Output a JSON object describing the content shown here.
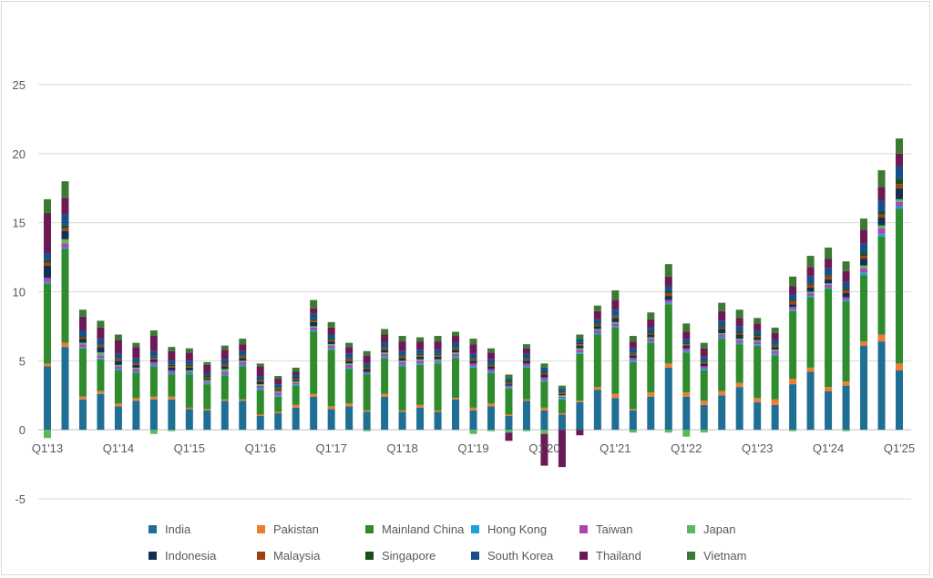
{
  "chart_data": {
    "type": "bar",
    "stacked": true,
    "title": "",
    "xlabel": "",
    "ylabel": "",
    "ylim": [
      -5,
      25
    ],
    "yticks": [
      -5,
      0,
      5,
      10,
      15,
      20,
      25
    ],
    "grid": true,
    "legend_position": "bottom",
    "x_tick_labels": [
      "Q1'13",
      "Q1'14",
      "Q1'15",
      "Q1'16",
      "Q1'17",
      "Q1'18",
      "Q1'19",
      "Q1'20",
      "Q1'21",
      "Q1'22",
      "Q1'23",
      "Q1'24",
      "Q1'25"
    ],
    "categories": [
      "Q1'13",
      "Q2'13",
      "Q3'13",
      "Q4'13",
      "Q1'14",
      "Q2'14",
      "Q3'14",
      "Q4'14",
      "Q1'15",
      "Q2'15",
      "Q3'15",
      "Q4'15",
      "Q1'16",
      "Q2'16",
      "Q3'16",
      "Q4'16",
      "Q1'17",
      "Q2'17",
      "Q3'17",
      "Q4'17",
      "Q1'18",
      "Q2'18",
      "Q3'18",
      "Q4'18",
      "Q1'19",
      "Q2'19",
      "Q3'19",
      "Q4'19",
      "Q1'20",
      "Q2'20",
      "Q3'20",
      "Q4'20",
      "Q1'21",
      "Q2'21",
      "Q3'21",
      "Q4'21",
      "Q1'22",
      "Q2'22",
      "Q3'22",
      "Q4'22",
      "Q1'23",
      "Q2'23",
      "Q3'23",
      "Q4'23",
      "Q1'24",
      "Q2'24",
      "Q3'24",
      "Q4'24",
      "Q1'25"
    ],
    "series": [
      {
        "name": "India",
        "color": "#1f6e94",
        "values": [
          4.6,
          6.0,
          2.2,
          2.6,
          1.7,
          2.1,
          2.2,
          2.2,
          1.5,
          1.4,
          2.1,
          2.1,
          1.0,
          1.2,
          1.6,
          2.4,
          1.5,
          1.7,
          1.3,
          2.4,
          1.3,
          1.6,
          1.3,
          2.2,
          1.4,
          1.7,
          1.0,
          2.1,
          1.4,
          1.1,
          2.0,
          2.9,
          2.3,
          1.4,
          2.4,
          4.5,
          2.4,
          1.8,
          2.5,
          3.1,
          2.0,
          1.8,
          3.3,
          4.2,
          2.8,
          3.2,
          6.1,
          6.4,
          4.3
        ]
      },
      {
        "name": "Pakistan",
        "color": "#ed7d31",
        "values": [
          0.2,
          0.3,
          0.2,
          0.2,
          0.2,
          0.2,
          0.2,
          0.2,
          0.1,
          0.1,
          0.1,
          0.1,
          0.1,
          0.1,
          0.2,
          0.2,
          0.2,
          0.2,
          0.1,
          0.2,
          0.1,
          0.2,
          0.1,
          0.1,
          0.2,
          0.2,
          0.1,
          0.1,
          0.2,
          0.1,
          0.1,
          0.2,
          0.3,
          0.1,
          0.3,
          0.3,
          0.3,
          0.3,
          0.3,
          0.3,
          0.3,
          0.4,
          0.4,
          0.3,
          0.3,
          0.3,
          0.3,
          0.5,
          0.5
        ]
      },
      {
        "name": "Mainland China",
        "color": "#2e8b2e",
        "values": [
          5.8,
          6.8,
          3.5,
          2.3,
          2.4,
          1.8,
          2.2,
          1.6,
          2.4,
          1.8,
          1.7,
          2.4,
          1.8,
          1.1,
          1.4,
          4.5,
          4.1,
          2.5,
          2.6,
          2.6,
          3.2,
          2.9,
          3.4,
          2.9,
          2.9,
          2.2,
          1.9,
          2.3,
          1.9,
          1.0,
          3.4,
          3.8,
          4.8,
          3.4,
          3.6,
          4.3,
          2.9,
          2.2,
          3.8,
          2.8,
          3.8,
          3.2,
          4.9,
          5.1,
          7.1,
          5.8,
          4.8,
          7.1,
          11.2
        ]
      },
      {
        "name": "Hong Kong",
        "color": "#1aa3d4",
        "values": [
          0.1,
          0.1,
          0.1,
          0.1,
          0.1,
          0.1,
          0.1,
          0.1,
          0.1,
          0.1,
          0.1,
          0.1,
          0.1,
          0.1,
          0.1,
          0.1,
          0.1,
          0.1,
          0.1,
          0.1,
          0.1,
          0.1,
          0.1,
          0.1,
          0.1,
          0.1,
          0.1,
          0.1,
          0.1,
          0.1,
          0.1,
          0.1,
          0.1,
          0.1,
          0.1,
          0.1,
          0.1,
          0.1,
          0.1,
          0.1,
          0.1,
          0.1,
          0.1,
          0.1,
          0.1,
          0.1,
          0.2,
          0.2,
          0.2
        ]
      },
      {
        "name": "Taiwan",
        "color": "#b044b5",
        "values": [
          0.3,
          0.3,
          0.2,
          0.2,
          0.2,
          0.2,
          0.2,
          0.2,
          0.1,
          0.1,
          0.2,
          0.2,
          0.2,
          0.2,
          0.1,
          0.2,
          0.2,
          0.2,
          0.1,
          0.2,
          0.2,
          0.2,
          0.1,
          0.2,
          0.2,
          0.2,
          0.1,
          0.2,
          0.2,
          0.1,
          0.2,
          0.2,
          0.2,
          0.2,
          0.2,
          0.2,
          0.2,
          0.2,
          0.2,
          0.2,
          0.2,
          0.2,
          0.2,
          0.2,
          0.2,
          0.2,
          0.3,
          0.4,
          0.3
        ]
      },
      {
        "name": "Japan",
        "color": "#5bb85b",
        "values": [
          -0.6,
          0.3,
          0.1,
          0.2,
          0.1,
          0.1,
          -0.3,
          -0.1,
          0.1,
          0.1,
          0.2,
          0.1,
          0.1,
          0.1,
          0.1,
          0.1,
          0.1,
          0.1,
          -0.1,
          0.1,
          0.1,
          0.1,
          0.1,
          0.1,
          -0.3,
          -0.1,
          -0.2,
          -0.1,
          -0.3,
          0.1,
          0.1,
          0.1,
          0.1,
          -0.2,
          0.1,
          -0.2,
          -0.5,
          -0.2,
          0.1,
          0.1,
          0.1,
          0.1,
          -0.1,
          0.1,
          0.1,
          -0.1,
          0.2,
          0.2,
          0.2
        ]
      },
      {
        "name": "Indonesia",
        "color": "#12304f",
        "values": [
          0.9,
          0.6,
          0.3,
          0.4,
          0.3,
          0.2,
          0.2,
          0.2,
          0.2,
          0.1,
          0.2,
          0.2,
          0.2,
          0.1,
          0.1,
          0.3,
          0.2,
          0.2,
          0.2,
          0.2,
          0.2,
          0.2,
          0.2,
          0.2,
          0.2,
          0.2,
          0.1,
          0.2,
          0.2,
          0.1,
          0.2,
          0.2,
          0.3,
          0.2,
          0.2,
          0.3,
          0.2,
          0.2,
          0.3,
          0.3,
          0.2,
          0.2,
          0.2,
          0.3,
          0.3,
          0.3,
          0.5,
          0.6,
          0.8
        ]
      },
      {
        "name": "Malaysia",
        "color": "#a0410d",
        "values": [
          0.2,
          0.2,
          0.1,
          0.1,
          0.1,
          0.1,
          0.1,
          0.1,
          0.1,
          0.1,
          0.1,
          0.1,
          0.1,
          0.1,
          0.1,
          0.1,
          0.1,
          0.1,
          0.1,
          0.1,
          0.1,
          0.1,
          0.1,
          0.1,
          0.1,
          0.1,
          0.1,
          0.1,
          0.1,
          0.1,
          0.1,
          0.1,
          0.1,
          0.1,
          0.1,
          0.2,
          0.1,
          0.1,
          0.1,
          0.1,
          0.1,
          0.1,
          0.2,
          0.2,
          0.2,
          0.2,
          0.2,
          0.2,
          0.3
        ]
      },
      {
        "name": "Singapore",
        "color": "#1a4d1a",
        "values": [
          0.2,
          0.2,
          0.1,
          0.1,
          0.1,
          0.1,
          0.1,
          0.1,
          0.1,
          0.1,
          0.1,
          0.1,
          0.1,
          0.1,
          0.1,
          0.1,
          0.1,
          0.1,
          0.1,
          0.1,
          0.1,
          0.1,
          0.1,
          0.1,
          0.1,
          0.1,
          0.1,
          0.1,
          0.1,
          0.1,
          0.1,
          0.1,
          0.1,
          0.1,
          0.1,
          0.1,
          0.1,
          0.1,
          0.1,
          0.1,
          0.1,
          0.1,
          0.1,
          0.1,
          0.1,
          0.1,
          0.2,
          0.2,
          0.4
        ]
      },
      {
        "name": "South Korea",
        "color": "#174f8a",
        "values": [
          0.5,
          0.8,
          0.4,
          0.4,
          0.3,
          0.3,
          0.4,
          0.3,
          0.3,
          0.2,
          0.3,
          0.3,
          0.2,
          0.2,
          0.2,
          0.4,
          0.3,
          0.3,
          0.2,
          0.3,
          0.3,
          0.3,
          0.3,
          0.3,
          0.3,
          0.3,
          0.2,
          0.3,
          0.3,
          0.2,
          0.3,
          0.3,
          0.4,
          0.3,
          0.3,
          0.4,
          0.3,
          0.3,
          0.4,
          0.4,
          0.3,
          0.3,
          0.4,
          0.5,
          0.5,
          0.5,
          0.7,
          0.8,
          0.9
        ]
      },
      {
        "name": "Thailand",
        "color": "#6b1a56",
        "values": [
          2.9,
          1.2,
          1.0,
          0.8,
          1.0,
          0.8,
          1.1,
          0.7,
          0.6,
          0.6,
          0.7,
          0.5,
          0.7,
          0.4,
          0.2,
          0.4,
          0.5,
          0.5,
          0.6,
          0.6,
          0.7,
          0.6,
          0.6,
          0.5,
          0.7,
          0.5,
          -0.6,
          0.4,
          -2.3,
          -2.7,
          -0.4,
          0.6,
          0.7,
          0.5,
          0.6,
          0.7,
          0.5,
          0.6,
          0.7,
          0.6,
          0.5,
          0.5,
          0.6,
          0.7,
          0.7,
          0.8,
          1.0,
          1.0,
          0.9
        ]
      },
      {
        "name": "Vietnam",
        "color": "#3c7a34",
        "values": [
          1.0,
          1.2,
          0.5,
          0.5,
          0.4,
          0.3,
          0.4,
          0.3,
          0.3,
          0.2,
          0.3,
          0.4,
          0.2,
          0.2,
          0.3,
          0.6,
          0.4,
          0.3,
          0.3,
          0.4,
          0.4,
          0.3,
          0.4,
          0.3,
          0.4,
          0.3,
          0.3,
          0.3,
          0.3,
          0.2,
          0.3,
          0.4,
          0.7,
          0.4,
          0.5,
          0.9,
          0.6,
          0.4,
          0.6,
          0.6,
          0.4,
          0.4,
          0.7,
          0.8,
          0.8,
          0.7,
          0.8,
          1.2,
          1.1
        ]
      }
    ]
  }
}
